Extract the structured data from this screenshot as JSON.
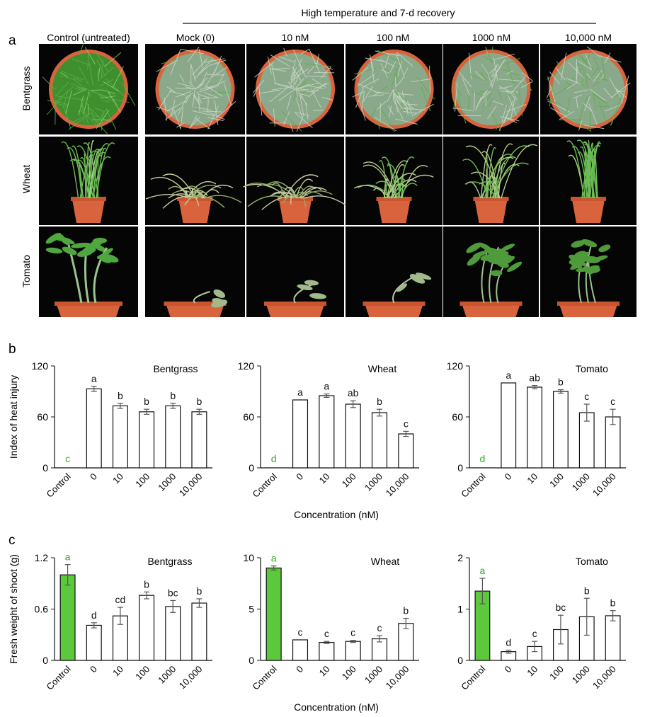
{
  "figure": {
    "panel_labels": [
      "a",
      "b",
      "c"
    ],
    "header": "High temperature and 7-d recovery",
    "photo_columns": [
      "Control (untreated)",
      "Mock (0)",
      "10 nM",
      "100 nM",
      "1000 nM",
      "10,000 nM"
    ],
    "photo_rows": [
      "Bentgrass",
      "Wheat",
      "Tomato"
    ],
    "colors": {
      "control_bar": "#5cc93c",
      "control_text": "#2fae1f",
      "bar_outline": "#111111",
      "photo_bg": "#050505",
      "pot": "#d9633c",
      "grass_green": "#5cae48",
      "grass_white": "#c9d7c5",
      "leaf_green": "#4f9a3a"
    }
  },
  "chart_data": [
    {
      "type": "bar",
      "panel": "b",
      "crop": "Bentgrass",
      "categories": [
        "Control",
        "0",
        "10",
        "100",
        "1000",
        "10,000"
      ],
      "values": [
        0,
        93,
        73,
        66,
        73,
        66
      ],
      "errors": [
        0,
        3,
        3,
        3,
        3,
        3
      ],
      "letters": [
        "c",
        "a",
        "b",
        "b",
        "b",
        "b"
      ],
      "ylabel": "Index of heat injury",
      "xlabel": "",
      "ylim": [
        0,
        120
      ],
      "yticks": [
        "0",
        "60",
        "120"
      ]
    },
    {
      "type": "bar",
      "panel": "b",
      "crop": "Wheat",
      "categories": [
        "Control",
        "0",
        "10",
        "100",
        "1000",
        "10,000"
      ],
      "values": [
        0,
        80,
        85,
        75,
        65,
        40
      ],
      "errors": [
        0,
        0,
        2,
        4,
        4,
        3
      ],
      "letters": [
        "d",
        "a",
        "a",
        "ab",
        "b",
        "c"
      ],
      "ylabel": "",
      "xlabel": "Concentration (nM)",
      "ylim": [
        0,
        120
      ],
      "yticks": [
        "0",
        "60",
        "120"
      ]
    },
    {
      "type": "bar",
      "panel": "b",
      "crop": "Tomato",
      "categories": [
        "Control",
        "0",
        "10",
        "100",
        "1000",
        "10,000"
      ],
      "values": [
        0,
        100,
        95,
        90,
        65,
        60
      ],
      "errors": [
        0,
        0,
        2,
        2,
        10,
        9
      ],
      "letters": [
        "d",
        "a",
        "ab",
        "b",
        "c",
        "c"
      ],
      "ylabel": "",
      "xlabel": "",
      "ylim": [
        0,
        120
      ],
      "yticks": [
        "0",
        "60",
        "120"
      ]
    },
    {
      "type": "bar",
      "panel": "c",
      "crop": "Bentgrass",
      "categories": [
        "Control",
        "0",
        "10",
        "100",
        "1000",
        "10,000"
      ],
      "values": [
        1.0,
        0.41,
        0.52,
        0.76,
        0.63,
        0.67
      ],
      "errors": [
        0.12,
        0.03,
        0.1,
        0.04,
        0.07,
        0.05
      ],
      "letters": [
        "a",
        "d",
        "cd",
        "b",
        "bc",
        "b"
      ],
      "ylabel": "Fresh weight of shoot (g)",
      "xlabel": "",
      "ylim": [
        0,
        1.2
      ],
      "yticks": [
        "0",
        "0.6",
        "1.2"
      ]
    },
    {
      "type": "bar",
      "panel": "c",
      "crop": "Wheat",
      "categories": [
        "Control",
        "0",
        "10",
        "100",
        "1000",
        "10,000"
      ],
      "values": [
        9.0,
        2.0,
        1.75,
        1.85,
        2.1,
        3.6
      ],
      "errors": [
        0.2,
        0,
        0.1,
        0.1,
        0.3,
        0.5
      ],
      "letters": [
        "a",
        "c",
        "c",
        "c",
        "c",
        "b"
      ],
      "ylabel": "",
      "xlabel": "Concentration (nM)",
      "ylim": [
        0,
        10
      ],
      "yticks": [
        "0",
        "5",
        "10"
      ]
    },
    {
      "type": "bar",
      "panel": "c",
      "crop": "Tomato",
      "categories": [
        "Control",
        "0",
        "10",
        "100",
        "1000",
        "10,000"
      ],
      "values": [
        1.35,
        0.17,
        0.27,
        0.6,
        0.85,
        0.87
      ],
      "errors": [
        0.25,
        0.03,
        0.1,
        0.28,
        0.36,
        0.1
      ],
      "letters": [
        "a",
        "d",
        "c",
        "bc",
        "b",
        "b"
      ],
      "ylabel": "",
      "xlabel": "",
      "ylim": [
        0,
        2
      ],
      "yticks": [
        "0",
        "1",
        "2"
      ]
    }
  ]
}
